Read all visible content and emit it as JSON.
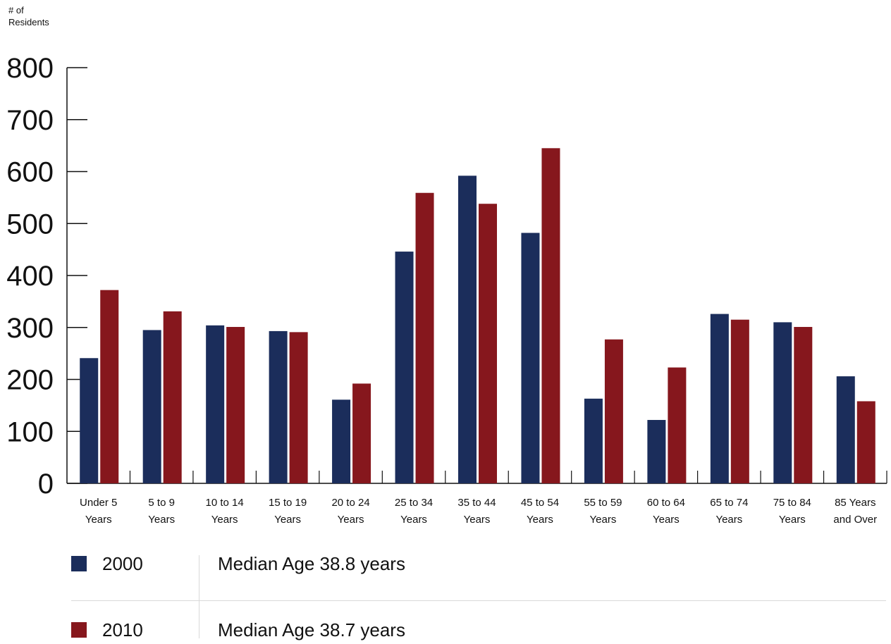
{
  "chart_data": {
    "type": "bar",
    "ylabel": "# of Residents",
    "ylim": [
      0,
      800
    ],
    "yticks": [
      0,
      100,
      200,
      300,
      400,
      500,
      600,
      700,
      800
    ],
    "categories": [
      [
        "Under 5",
        "Years"
      ],
      [
        "5 to 9",
        "Years"
      ],
      [
        "10 to 14",
        "Years"
      ],
      [
        "15 to 19",
        "Years"
      ],
      [
        "20 to 24",
        "Years"
      ],
      [
        "25 to 34",
        "Years"
      ],
      [
        "35 to 44",
        "Years"
      ],
      [
        "45 to 54",
        "Years"
      ],
      [
        "55 to 59",
        "Years"
      ],
      [
        "60 to 64",
        "Years"
      ],
      [
        "65 to 74",
        "Years"
      ],
      [
        "75 to 84",
        "Years"
      ],
      [
        "85 Years",
        "and Over"
      ]
    ],
    "series": [
      {
        "name": "2000",
        "color": "#1b2d5b",
        "values": [
          241,
          295,
          304,
          293,
          161,
          446,
          592,
          482,
          163,
          122,
          326,
          310,
          206
        ]
      },
      {
        "name": "2010",
        "color": "#86171d",
        "values": [
          372,
          331,
          301,
          291,
          192,
          559,
          538,
          645,
          277,
          223,
          315,
          301,
          158
        ]
      }
    ]
  },
  "legend": [
    {
      "year": "2000",
      "color": "#1b2d5b",
      "median": "Median Age 38.8 years"
    },
    {
      "year": "2010",
      "color": "#86171d",
      "median": "Median Age 38.7 years"
    }
  ]
}
